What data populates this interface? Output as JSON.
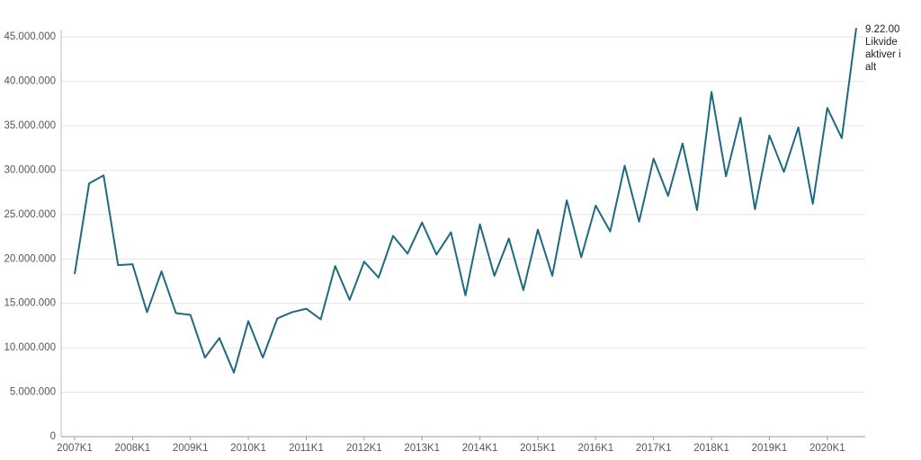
{
  "chart_data": {
    "type": "line",
    "categories": [
      "2007K1",
      null,
      null,
      null,
      "2008K1",
      null,
      null,
      null,
      "2009K1",
      null,
      null,
      null,
      "2010K1",
      null,
      null,
      null,
      "2011K1",
      null,
      null,
      null,
      "2012K1",
      null,
      null,
      null,
      "2013K1",
      null,
      null,
      null,
      "2014K1",
      null,
      null,
      null,
      "2015K1",
      null,
      null,
      null,
      "2016K1",
      null,
      null,
      null,
      "2017K1",
      null,
      null,
      null,
      "2018K1",
      null,
      null,
      null,
      "2019K1",
      null,
      null,
      null,
      "2020K1",
      null,
      null
    ],
    "series": [
      {
        "name": "9.22.00 Likvide aktiver i alt",
        "color": "#1f6a80",
        "values": [
          18300000,
          28500000,
          29400000,
          19300000,
          19400000,
          14000000,
          18600000,
          13900000,
          13700000,
          8900000,
          11100000,
          7200000,
          13000000,
          8900000,
          13300000,
          14000000,
          14400000,
          13200000,
          19200000,
          15400000,
          19700000,
          17900000,
          22600000,
          20600000,
          24100000,
          20500000,
          23000000,
          15900000,
          23900000,
          18100000,
          22300000,
          16500000,
          23300000,
          18100000,
          26600000,
          20200000,
          26000000,
          23100000,
          30500000,
          24200000,
          31300000,
          27100000,
          33000000,
          25500000,
          38800000,
          29300000,
          35900000,
          25600000,
          33900000,
          29800000,
          34800000,
          26200000,
          37000000,
          33600000,
          46000000
        ]
      }
    ],
    "ylim": [
      0,
      45000000
    ],
    "yticks": [
      0,
      {
        "value": 5000000,
        "label": "5.000.000"
      },
      {
        "value": 10000000,
        "label": "10.000.000"
      },
      {
        "value": 15000000,
        "label": "15.000.000"
      },
      {
        "value": 20000000,
        "label": "20.000.000"
      },
      {
        "value": 25000000,
        "label": "25.000.000"
      },
      {
        "value": 30000000,
        "label": "30.000.000"
      },
      {
        "value": 35000000,
        "label": "35.000.000"
      },
      {
        "value": 40000000,
        "label": "40.000.000"
      },
      {
        "value": 45000000,
        "label": "45.000.000"
      }
    ],
    "grid": true
  }
}
